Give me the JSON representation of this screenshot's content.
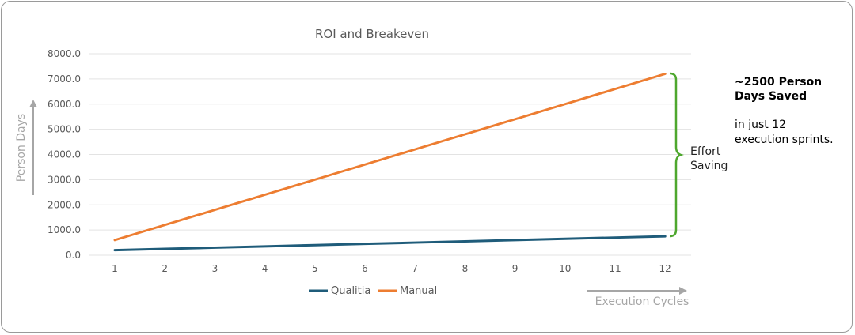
{
  "chart_data": {
    "type": "line",
    "title": "ROI and Breakeven",
    "xlabel": "Execution Cycles",
    "ylabel": "Person Days",
    "x": [
      1,
      2,
      3,
      4,
      5,
      6,
      7,
      8,
      9,
      10,
      11,
      12
    ],
    "ylim": [
      0,
      8000
    ],
    "yticks": [
      "0.0",
      "1000.0",
      "2000.0",
      "3000.0",
      "4000.0",
      "5000.0",
      "6000.0",
      "7000.0",
      "8000.0"
    ],
    "grid": true,
    "legend": "bottom",
    "series": [
      {
        "name": "Qualitia",
        "color": "#1f5c7a",
        "values": [
          200,
          250,
          300,
          350,
          400,
          450,
          500,
          550,
          600,
          650,
          700,
          750
        ]
      },
      {
        "name": "Manual",
        "color": "#ed7d31",
        "values": [
          600,
          1200,
          1800,
          2400,
          3000,
          3600,
          4200,
          4800,
          5400,
          6000,
          6600,
          7200
        ]
      }
    ],
    "annotation": {
      "label_line1": "Effort",
      "label_line2": "Saving",
      "color": "#4ea72e"
    }
  },
  "callout": {
    "bold_line1": "~2500 Person",
    "bold_line2": "Days Saved",
    "line1": "in just 12",
    "line2": "execution sprints."
  }
}
